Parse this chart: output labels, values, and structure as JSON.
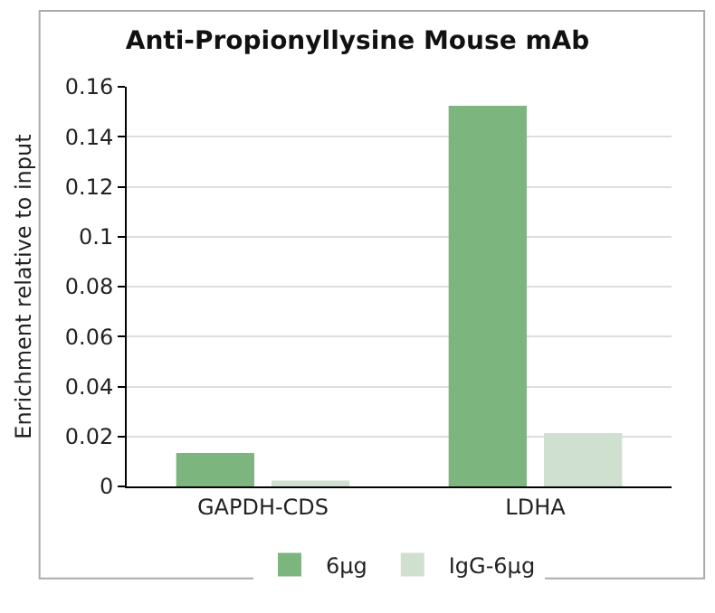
{
  "chart_data": {
    "type": "bar",
    "title": "Anti-Propionyllysine Mouse mAb",
    "ylabel": "Enrichment relative to input",
    "categories": [
      "GAPDH-CDS",
      "LDHA"
    ],
    "series": [
      {
        "name": "6μg",
        "color": "#7db57f",
        "values": [
          0.013,
          0.152
        ]
      },
      {
        "name": "IgG-6μg",
        "color": "#cfe0d0",
        "values": [
          0.002,
          0.021
        ]
      }
    ],
    "ylim": [
      0,
      0.16
    ],
    "yticks": [
      0,
      0.02,
      0.04,
      0.06,
      0.08,
      0.1,
      0.12,
      0.14,
      0.16
    ],
    "grid": "y",
    "legend": "bottom"
  }
}
